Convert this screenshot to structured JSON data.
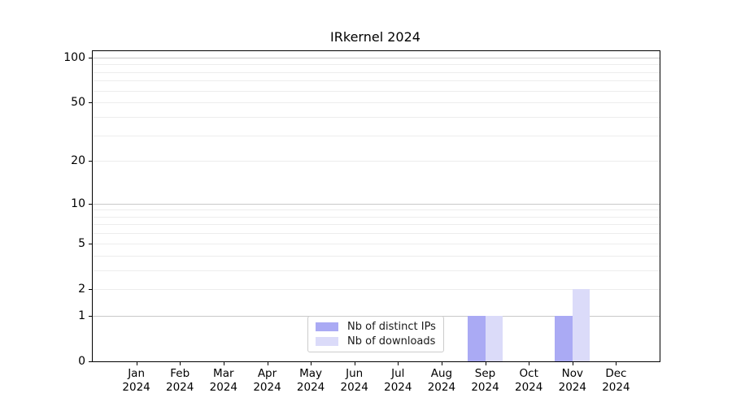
{
  "chart_data": {
    "type": "bar",
    "title": "IRkernel 2024",
    "categories": [
      "Jan\n2024",
      "Feb\n2024",
      "Mar\n2024",
      "Apr\n2024",
      "May\n2024",
      "Jun\n2024",
      "Jul\n2024",
      "Aug\n2024",
      "Sep\n2024",
      "Oct\n2024",
      "Nov\n2024",
      "Dec\n2024"
    ],
    "series": [
      {
        "name": "Nb of distinct IPs",
        "color": "#aaaaf4",
        "values": [
          0,
          0,
          0,
          0,
          0,
          0,
          0,
          0,
          1,
          0,
          1,
          0
        ]
      },
      {
        "name": "Nb of downloads",
        "color": "#dbdbf9",
        "values": [
          0,
          0,
          0,
          0,
          0,
          0,
          0,
          0,
          1,
          0,
          2,
          0
        ]
      }
    ],
    "yscale": "log1p",
    "ylim": [
      0,
      110
    ],
    "y_major_ticks": [
      0,
      1,
      2,
      5,
      10,
      20,
      50,
      100
    ],
    "grid_major_values": [
      1,
      10,
      100
    ],
    "grid_minor_values": [
      2,
      3,
      4,
      5,
      6,
      7,
      8,
      9,
      20,
      30,
      40,
      50,
      60,
      70,
      80,
      90
    ],
    "grid": true,
    "legend_position": "lower center",
    "xlabel": "",
    "ylabel": ""
  },
  "colors": {
    "background": "#ffffff",
    "axis": "#000000",
    "grid_major": "#c9c9c9",
    "grid_minor": "#ededed",
    "bar_distinct_ips": "#aaaaf4",
    "bar_downloads": "#dbdbf9",
    "legend_border": "#cccccc"
  }
}
